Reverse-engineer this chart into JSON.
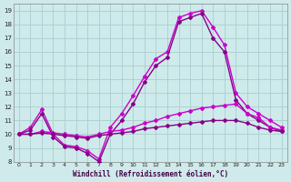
{
  "background_color": "#ceeaea",
  "grid_color": "#aacece",
  "line_color1": "#cc00cc",
  "line_color2": "#880088",
  "title": "Windchill (Refroidissement éolien,°C)",
  "xlim": [
    -0.5,
    23.5
  ],
  "ylim": [
    8,
    19.5
  ],
  "xticks": [
    0,
    1,
    2,
    3,
    4,
    5,
    6,
    7,
    8,
    9,
    10,
    11,
    12,
    13,
    14,
    15,
    16,
    17,
    18,
    19,
    20,
    21,
    22,
    23
  ],
  "yticks": [
    8,
    9,
    10,
    11,
    12,
    13,
    14,
    15,
    16,
    17,
    18,
    19
  ],
  "series1_x": [
    0,
    1,
    2,
    3,
    4,
    5,
    6,
    7,
    8,
    9,
    10,
    11,
    12,
    13,
    14,
    15,
    16,
    17,
    18,
    19,
    20,
    21,
    22,
    23
  ],
  "series1_y": [
    10.0,
    10.5,
    11.8,
    10.0,
    9.2,
    9.1,
    8.8,
    8.2,
    10.5,
    11.5,
    12.8,
    14.2,
    15.5,
    16.0,
    18.5,
    18.8,
    19.0,
    17.8,
    16.5,
    13.0,
    12.0,
    11.5,
    11.0,
    10.5
  ],
  "series2_x": [
    0,
    1,
    2,
    3,
    4,
    5,
    6,
    7,
    8,
    9,
    10,
    11,
    12,
    13,
    14,
    15,
    16,
    17,
    18,
    19,
    20,
    21,
    22,
    23
  ],
  "series2_y": [
    10.0,
    10.3,
    11.5,
    9.8,
    9.1,
    9.0,
    8.6,
    8.0,
    10.0,
    11.0,
    12.2,
    13.8,
    15.0,
    15.6,
    18.2,
    18.5,
    18.8,
    17.0,
    16.0,
    12.5,
    11.5,
    11.0,
    10.5,
    10.2
  ],
  "series3_x": [
    0,
    1,
    2,
    3,
    4,
    5,
    6,
    7,
    8,
    9,
    10,
    11,
    12,
    13,
    14,
    15,
    16,
    17,
    18,
    19,
    20,
    21,
    22,
    23
  ],
  "series3_y": [
    10.0,
    10.0,
    10.2,
    10.1,
    10.0,
    9.9,
    9.8,
    10.0,
    10.2,
    10.3,
    10.5,
    10.8,
    11.0,
    11.3,
    11.5,
    11.7,
    11.9,
    12.0,
    12.1,
    12.2,
    11.5,
    11.2,
    10.5,
    10.3
  ],
  "series4_x": [
    0,
    1,
    2,
    3,
    4,
    5,
    6,
    7,
    8,
    9,
    10,
    11,
    12,
    13,
    14,
    15,
    16,
    17,
    18,
    19,
    20,
    21,
    22,
    23
  ],
  "series4_y": [
    10.0,
    10.0,
    10.1,
    10.0,
    9.9,
    9.8,
    9.7,
    9.9,
    10.0,
    10.1,
    10.2,
    10.4,
    10.5,
    10.6,
    10.7,
    10.8,
    10.9,
    11.0,
    11.0,
    11.0,
    10.8,
    10.5,
    10.3,
    10.2
  ]
}
